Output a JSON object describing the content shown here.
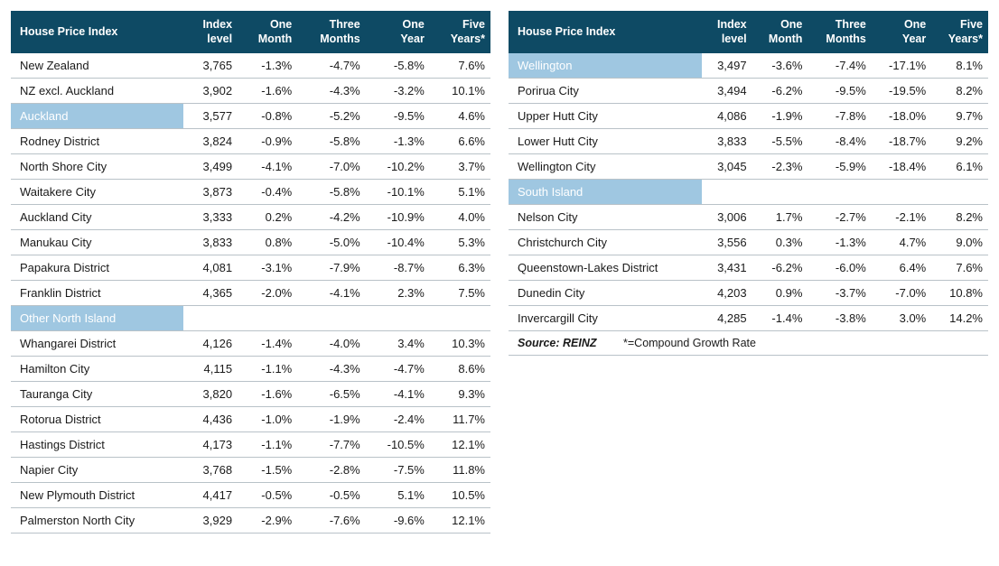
{
  "colors": {
    "header_bg": "#0e4a64",
    "header_text": "#ffffff",
    "section_bg": "#9fc7e1",
    "section_text": "#ffffff",
    "row_border": "#b9c2c8",
    "text": "#1a1a1a",
    "background": "#ffffff"
  },
  "typography": {
    "family": "-apple-system, Segoe UI, Arial, sans-serif",
    "header_size_pt": 12.5,
    "body_size_pt": 13
  },
  "columns": [
    "House Price Index",
    "Index level",
    "One Month",
    "Three Months",
    "One Year",
    "Five Years*"
  ],
  "left": [
    {
      "type": "row",
      "cells": [
        "New Zealand",
        "3,765",
        "-1.3%",
        "-4.7%",
        "-5.8%",
        "7.6%"
      ]
    },
    {
      "type": "row",
      "cells": [
        "NZ excl. Auckland",
        "3,902",
        "-1.6%",
        "-4.3%",
        "-3.2%",
        "10.1%"
      ]
    },
    {
      "type": "section",
      "label": "Auckland",
      "cells": [
        "3,577",
        "-0.8%",
        "-5.2%",
        "-9.5%",
        "4.6%"
      ]
    },
    {
      "type": "row",
      "cells": [
        "Rodney District",
        "3,824",
        "-0.9%",
        "-5.8%",
        "-1.3%",
        "6.6%"
      ]
    },
    {
      "type": "row",
      "cells": [
        "North Shore City",
        "3,499",
        "-4.1%",
        "-7.0%",
        "-10.2%",
        "3.7%"
      ]
    },
    {
      "type": "row",
      "cells": [
        "Waitakere City",
        "3,873",
        "-0.4%",
        "-5.8%",
        "-10.1%",
        "5.1%"
      ]
    },
    {
      "type": "row",
      "cells": [
        "Auckland City",
        "3,333",
        "0.2%",
        "-4.2%",
        "-10.9%",
        "4.0%"
      ]
    },
    {
      "type": "row",
      "cells": [
        "Manukau City",
        "3,833",
        "0.8%",
        "-5.0%",
        "-10.4%",
        "5.3%"
      ]
    },
    {
      "type": "row",
      "cells": [
        "Papakura District",
        "4,081",
        "-3.1%",
        "-7.9%",
        "-8.7%",
        "6.3%"
      ]
    },
    {
      "type": "row",
      "cells": [
        "Franklin District",
        "4,365",
        "-2.0%",
        "-4.1%",
        "2.3%",
        "7.5%"
      ]
    },
    {
      "type": "section",
      "label": "Other North Island",
      "cells": [
        "",
        "",
        "",
        "",
        ""
      ]
    },
    {
      "type": "row",
      "cells": [
        "Whangarei District",
        "4,126",
        "-1.4%",
        "-4.0%",
        "3.4%",
        "10.3%"
      ]
    },
    {
      "type": "row",
      "cells": [
        "Hamilton City",
        "4,115",
        "-1.1%",
        "-4.3%",
        "-4.7%",
        "8.6%"
      ]
    },
    {
      "type": "row",
      "cells": [
        "Tauranga City",
        "3,820",
        "-1.6%",
        "-6.5%",
        "-4.1%",
        "9.3%"
      ]
    },
    {
      "type": "row",
      "cells": [
        "Rotorua District",
        "4,436",
        "-1.0%",
        "-1.9%",
        "-2.4%",
        "11.7%"
      ]
    },
    {
      "type": "row",
      "cells": [
        "Hastings District",
        "4,173",
        "-1.1%",
        "-7.7%",
        "-10.5%",
        "12.1%"
      ]
    },
    {
      "type": "row",
      "cells": [
        "Napier City",
        "3,768",
        "-1.5%",
        "-2.8%",
        "-7.5%",
        "11.8%"
      ]
    },
    {
      "type": "row",
      "cells": [
        "New Plymouth District",
        "4,417",
        "-0.5%",
        "-0.5%",
        "5.1%",
        "10.5%"
      ]
    },
    {
      "type": "row",
      "cells": [
        "Palmerston North City",
        "3,929",
        "-2.9%",
        "-7.6%",
        "-9.6%",
        "12.1%"
      ]
    }
  ],
  "right": [
    {
      "type": "section",
      "label": "Wellington",
      "cells": [
        "3,497",
        "-3.6%",
        "-7.4%",
        "-17.1%",
        "8.1%"
      ]
    },
    {
      "type": "row",
      "cells": [
        "Porirua City",
        "3,494",
        "-6.2%",
        "-9.5%",
        "-19.5%",
        "8.2%"
      ]
    },
    {
      "type": "row",
      "cells": [
        "Upper Hutt City",
        "4,086",
        "-1.9%",
        "-7.8%",
        "-18.0%",
        "9.7%"
      ]
    },
    {
      "type": "row",
      "cells": [
        "Lower Hutt City",
        "3,833",
        "-5.5%",
        "-8.4%",
        "-18.7%",
        "9.2%"
      ]
    },
    {
      "type": "row",
      "cells": [
        "Wellington City",
        "3,045",
        "-2.3%",
        "-5.9%",
        "-18.4%",
        "6.1%"
      ]
    },
    {
      "type": "section",
      "label": "South Island",
      "cells": [
        "",
        "",
        "",
        "",
        ""
      ]
    },
    {
      "type": "row",
      "cells": [
        "Nelson City",
        "3,006",
        "1.7%",
        "-2.7%",
        "-2.1%",
        "8.2%"
      ]
    },
    {
      "type": "row",
      "cells": [
        "Christchurch City",
        "3,556",
        "0.3%",
        "-1.3%",
        "4.7%",
        "9.0%"
      ]
    },
    {
      "type": "row",
      "cells": [
        "Queenstown-Lakes District",
        "3,431",
        "-6.2%",
        "-6.0%",
        "6.4%",
        "7.6%"
      ]
    },
    {
      "type": "row",
      "cells": [
        "Dunedin City",
        "4,203",
        "0.9%",
        "-3.7%",
        "-7.0%",
        "10.8%"
      ]
    },
    {
      "type": "row",
      "cells": [
        "Invercargill City",
        "4,285",
        "-1.4%",
        "-3.8%",
        "3.0%",
        "14.2%"
      ]
    }
  ],
  "footer": {
    "source_label": "Source: REINZ",
    "note": "*=Compound Growth Rate"
  }
}
